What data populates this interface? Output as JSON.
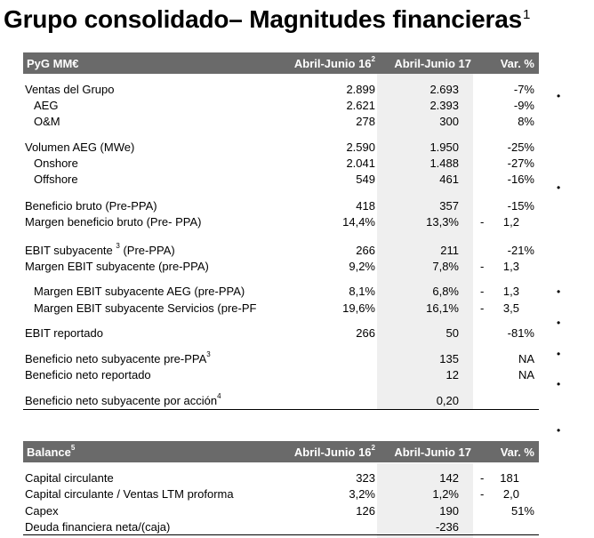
{
  "title": {
    "text": "Grupo consolidado– Magnitudes financieras",
    "sup": "1"
  },
  "pyg": {
    "header": {
      "label": "PyG MM€",
      "col1": "Abril-Junio 16",
      "col1_sup": "2",
      "col2": "Abril-Junio 17",
      "col3": "Var. %"
    },
    "rows": [
      {
        "label": "Ventas del Grupo",
        "c1": "2.899",
        "c2": "2.693",
        "dash": "",
        "c3": "-7%"
      },
      {
        "label": "AEG",
        "c1": "2.621",
        "c2": "2.393",
        "dash": "",
        "c3": "-9%"
      },
      {
        "label": "O&M",
        "c1": "278",
        "c2": "300",
        "dash": "",
        "c3": "8%"
      },
      {
        "label": "Volumen AEG (MWe)",
        "c1": "2.590",
        "c2": "1.950",
        "dash": "",
        "c3": "-25%"
      },
      {
        "label": "Onshore",
        "c1": "2.041",
        "c2": "1.488",
        "dash": "",
        "c3": "-27%"
      },
      {
        "label": "Offshore",
        "c1": "549",
        "c2": "461",
        "dash": "",
        "c3": "-16%"
      },
      {
        "label": "Beneficio bruto (Pre-PPA)",
        "c1": "418",
        "c2": "357",
        "dash": "",
        "c3": "-15%"
      },
      {
        "label": "Margen beneficio bruto (Pre- PPA)",
        "c1": "14,4%",
        "c2": "13,3%",
        "dash": "-",
        "c3": "1,2"
      },
      {
        "label": "EBIT subyacente",
        "sup": "3",
        "label_after": " (Pre-PPA)",
        "c1": "266",
        "c2": "211",
        "dash": "",
        "c3": "-21%"
      },
      {
        "label": "Margen EBIT subyacente (pre-PPA)",
        "c1": "9,2%",
        "c2": "7,8%",
        "dash": "-",
        "c3": "1,3"
      },
      {
        "label": "Margen EBIT  subyacente AEG (pre-PPA)",
        "c1": "8,1%",
        "c2": "6,8%",
        "dash": "-",
        "c3": "1,3"
      },
      {
        "label": "Margen EBIT  subyacente Servicios (pre-PF",
        "c1": "19,6%",
        "c2": "16,1%",
        "dash": "-",
        "c3": "3,5"
      },
      {
        "label": "EBIT reportado",
        "c1": "266",
        "c2": "50",
        "dash": "",
        "c3": "-81%"
      },
      {
        "label": "Beneficio neto  subyacente pre-PPA",
        "sup": "3",
        "c1": "",
        "c2": "135",
        "dash": "",
        "c3": "NA"
      },
      {
        "label": "Beneficio neto reportado",
        "c1": "",
        "c2": "12",
        "dash": "",
        "c3": "NA"
      },
      {
        "label": "Beneficio neto  subyacente por acción",
        "sup": "4",
        "c1": "",
        "c2": "0,20",
        "dash": "",
        "c3": ""
      }
    ]
  },
  "balance": {
    "header": {
      "label": "Balance",
      "label_sup": "5",
      "col1": "Abril-Junio 16",
      "col1_sup": "2",
      "col2": "Abril-Junio 17",
      "col3": "Var. %"
    },
    "rows": [
      {
        "label": "Capital circulante",
        "c1": "323",
        "c2": "142",
        "dash": "-",
        "c3": "181"
      },
      {
        "label": "Capital circulante / Ventas LTM proforma",
        "c1": "3,2%",
        "c2": "1,2%",
        "dash": "-",
        "c3": "2,0"
      },
      {
        "label": "Capex",
        "c1": "126",
        "c2": "190",
        "dash": "",
        "c3": "51%"
      },
      {
        "label": "Deuda financiera neta/(caja)",
        "c1": "",
        "c2": "-236",
        "dash": "",
        "c3": ""
      }
    ]
  },
  "bullets": [
    "•",
    "•",
    "•",
    "•",
    "•",
    "•",
    "•"
  ]
}
